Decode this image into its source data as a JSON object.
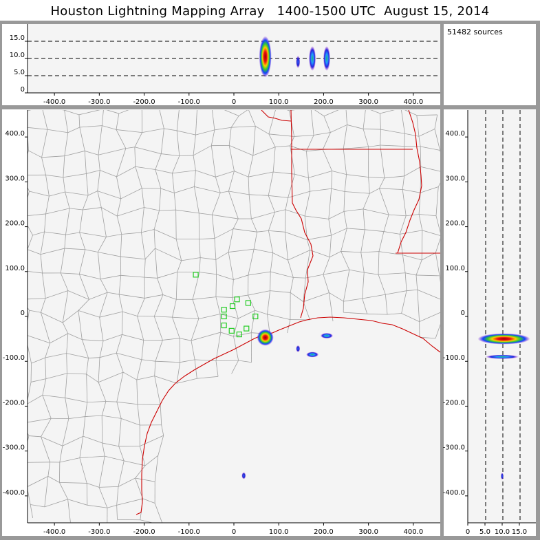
{
  "title": "Houston Lightning Mapping Array   1400-1500 UTC  August 15, 2014",
  "sources_text": "51482 sources",
  "colors": {
    "frame": "#999999",
    "panel_bg": "#f4f4f4",
    "county_lines": "#a0a0a0",
    "coast_state": "#cc0000",
    "station": "#22cc22"
  },
  "chart_data": [
    {
      "panel": "altitude-vs-east-west",
      "type": "heatmap",
      "xlim": [
        -460,
        460
      ],
      "ylim": [
        0,
        20
      ],
      "x_ticks": [
        "-400.0",
        "-300.0",
        "-200.0",
        "-100.0",
        "0",
        "100.0",
        "200.0",
        "300.0",
        "400.0"
      ],
      "x_tick_values": [
        -400,
        -300,
        -200,
        -100,
        0,
        100,
        200,
        300,
        400
      ],
      "y_ticks": [
        "0",
        "5.0",
        "10.0",
        "15.0"
      ],
      "y_tick_values": [
        0,
        5,
        10,
        15
      ],
      "dashed_reference_lines": [
        5,
        10,
        15
      ],
      "density_clusters": [
        {
          "x": 70,
          "y": 10.5,
          "intensity": "high"
        },
        {
          "x": 143,
          "y": 9,
          "intensity": "low"
        },
        {
          "x": 175,
          "y": 10,
          "intensity": "medium"
        },
        {
          "x": 207,
          "y": 10,
          "intensity": "medium"
        }
      ]
    },
    {
      "panel": "plan-view-map",
      "type": "heatmap",
      "xlim": [
        -460,
        460
      ],
      "ylim": [
        -460,
        460
      ],
      "x_ticks": [
        "-400.0",
        "-300.0",
        "-200.0",
        "-100.0",
        "0",
        "100.0",
        "200.0",
        "300.0",
        "400.0"
      ],
      "x_tick_values": [
        -400,
        -300,
        -200,
        -100,
        0,
        100,
        200,
        300,
        400
      ],
      "y_ticks": [
        "400.0",
        "300.0",
        "200.0",
        "100.0",
        "0",
        "-100.0",
        "-200.0",
        "-300.0",
        "-400.0"
      ],
      "y_tick_values": [
        400,
        300,
        200,
        100,
        0,
        -100,
        -200,
        -300,
        -400
      ],
      "density_clusters": [
        {
          "x": 70,
          "y": -47,
          "intensity": "high"
        },
        {
          "x": 143,
          "y": -72,
          "intensity": "low"
        },
        {
          "x": 175,
          "y": -85,
          "intensity": "medium"
        },
        {
          "x": 207,
          "y": -43,
          "intensity": "medium"
        },
        {
          "x": 22,
          "y": -355,
          "intensity": "low"
        }
      ],
      "stations": [
        {
          "x": -85,
          "y": 93
        },
        {
          "x": -22,
          "y": 15
        },
        {
          "x": -3,
          "y": 23
        },
        {
          "x": 7,
          "y": 38
        },
        {
          "x": 32,
          "y": 30
        },
        {
          "x": 48,
          "y": 0
        },
        {
          "x": -22,
          "y": -20
        },
        {
          "x": -5,
          "y": -32
        },
        {
          "x": 12,
          "y": -40
        },
        {
          "x": 28,
          "y": -27
        },
        {
          "x": -22,
          "y": 0
        }
      ]
    },
    {
      "panel": "north-south-vs-altitude",
      "type": "heatmap",
      "xlim": [
        0,
        20
      ],
      "ylim": [
        -460,
        460
      ],
      "x_ticks": [
        "0",
        "5.0",
        "10.0",
        "15.0"
      ],
      "x_tick_values": [
        0,
        5,
        10,
        15
      ],
      "y_ticks": [
        "400.0",
        "300.0",
        "200.0",
        "100.0",
        "0",
        "-100.0",
        "-200.0",
        "-300.0",
        "-400.0"
      ],
      "y_tick_values": [
        400,
        300,
        200,
        100,
        0,
        -100,
        -200,
        -300,
        -400
      ],
      "dashed_reference_lines": [
        5,
        10,
        15
      ],
      "density_clusters": [
        {
          "x": 10.5,
          "y": -50,
          "intensity": "high"
        },
        {
          "x": 10,
          "y": -90,
          "intensity": "medium"
        },
        {
          "x": 10,
          "y": -356,
          "intensity": "low"
        }
      ]
    }
  ]
}
